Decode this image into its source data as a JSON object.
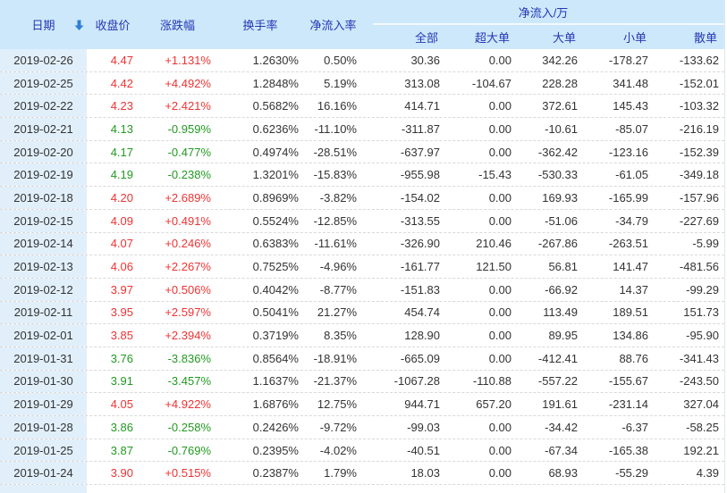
{
  "colors": {
    "up": "#ee3333",
    "down": "#229922",
    "header_bg": "#cde8fa",
    "header_text": "#2537b5",
    "date_cell_bg": "#e1effa",
    "text": "#333333",
    "sort_arrow": "#2e7fd6"
  },
  "table": {
    "columns": {
      "date": "日期",
      "close": "收盘价",
      "change": "涨跌幅",
      "turnover": "换手率",
      "inflow_rate": "净流入率",
      "group": "净流入/万",
      "group_cols": [
        "全部",
        "超大单",
        "大单",
        "小单",
        "散单"
      ]
    },
    "sort_icon": "down-arrow-icon",
    "rows": [
      {
        "date": "2019-02-26",
        "close": "4.47",
        "change": "+1.131%",
        "turnover": "1.2630%",
        "inflow_rate": "0.50%",
        "total": "30.36",
        "super_large": "0.00",
        "large": "342.26",
        "small": "-178.27",
        "retail": "-133.62"
      },
      {
        "date": "2019-02-25",
        "close": "4.42",
        "change": "+4.492%",
        "turnover": "1.2848%",
        "inflow_rate": "5.19%",
        "total": "313.08",
        "super_large": "-104.67",
        "large": "228.28",
        "small": "341.48",
        "retail": "-152.01"
      },
      {
        "date": "2019-02-22",
        "close": "4.23",
        "change": "+2.421%",
        "turnover": "0.5682%",
        "inflow_rate": "16.16%",
        "total": "414.71",
        "super_large": "0.00",
        "large": "372.61",
        "small": "145.43",
        "retail": "-103.32"
      },
      {
        "date": "2019-02-21",
        "close": "4.13",
        "change": "-0.959%",
        "turnover": "0.6236%",
        "inflow_rate": "-11.10%",
        "total": "-311.87",
        "super_large": "0.00",
        "large": "-10.61",
        "small": "-85.07",
        "retail": "-216.19"
      },
      {
        "date": "2019-02-20",
        "close": "4.17",
        "change": "-0.477%",
        "turnover": "0.4974%",
        "inflow_rate": "-28.51%",
        "total": "-637.97",
        "super_large": "0.00",
        "large": "-362.42",
        "small": "-123.16",
        "retail": "-152.39"
      },
      {
        "date": "2019-02-19",
        "close": "4.19",
        "change": "-0.238%",
        "turnover": "1.3201%",
        "inflow_rate": "-15.83%",
        "total": "-955.98",
        "super_large": "-15.43",
        "large": "-530.33",
        "small": "-61.05",
        "retail": "-349.18"
      },
      {
        "date": "2019-02-18",
        "close": "4.20",
        "change": "+2.689%",
        "turnover": "0.8969%",
        "inflow_rate": "-3.82%",
        "total": "-154.02",
        "super_large": "0.00",
        "large": "169.93",
        "small": "-165.99",
        "retail": "-157.96"
      },
      {
        "date": "2019-02-15",
        "close": "4.09",
        "change": "+0.491%",
        "turnover": "0.5524%",
        "inflow_rate": "-12.85%",
        "total": "-313.55",
        "super_large": "0.00",
        "large": "-51.06",
        "small": "-34.79",
        "retail": "-227.69"
      },
      {
        "date": "2019-02-14",
        "close": "4.07",
        "change": "+0.246%",
        "turnover": "0.6383%",
        "inflow_rate": "-11.61%",
        "total": "-326.90",
        "super_large": "210.46",
        "large": "-267.86",
        "small": "-263.51",
        "retail": "-5.99"
      },
      {
        "date": "2019-02-13",
        "close": "4.06",
        "change": "+2.267%",
        "turnover": "0.7525%",
        "inflow_rate": "-4.96%",
        "total": "-161.77",
        "super_large": "121.50",
        "large": "56.81",
        "small": "141.47",
        "retail": "-481.56"
      },
      {
        "date": "2019-02-12",
        "close": "3.97",
        "change": "+0.506%",
        "turnover": "0.4042%",
        "inflow_rate": "-8.77%",
        "total": "-151.83",
        "super_large": "0.00",
        "large": "-66.92",
        "small": "14.37",
        "retail": "-99.29"
      },
      {
        "date": "2019-02-11",
        "close": "3.95",
        "change": "+2.597%",
        "turnover": "0.5041%",
        "inflow_rate": "21.27%",
        "total": "454.74",
        "super_large": "0.00",
        "large": "113.49",
        "small": "189.51",
        "retail": "151.73"
      },
      {
        "date": "2019-02-01",
        "close": "3.85",
        "change": "+2.394%",
        "turnover": "0.3719%",
        "inflow_rate": "8.35%",
        "total": "128.90",
        "super_large": "0.00",
        "large": "89.95",
        "small": "134.86",
        "retail": "-95.90"
      },
      {
        "date": "2019-01-31",
        "close": "3.76",
        "change": "-3.836%",
        "turnover": "0.8564%",
        "inflow_rate": "-18.91%",
        "total": "-665.09",
        "super_large": "0.00",
        "large": "-412.41",
        "small": "88.76",
        "retail": "-341.43"
      },
      {
        "date": "2019-01-30",
        "close": "3.91",
        "change": "-3.457%",
        "turnover": "1.1637%",
        "inflow_rate": "-21.37%",
        "total": "-1067.28",
        "super_large": "-110.88",
        "large": "-557.22",
        "small": "-155.67",
        "retail": "-243.50"
      },
      {
        "date": "2019-01-29",
        "close": "4.05",
        "change": "+4.922%",
        "turnover": "1.6876%",
        "inflow_rate": "12.75%",
        "total": "944.71",
        "super_large": "657.20",
        "large": "191.61",
        "small": "-231.14",
        "retail": "327.04"
      },
      {
        "date": "2019-01-28",
        "close": "3.86",
        "change": "-0.258%",
        "turnover": "0.2426%",
        "inflow_rate": "-9.72%",
        "total": "-99.03",
        "super_large": "0.00",
        "large": "-34.42",
        "small": "-6.37",
        "retail": "-58.25"
      },
      {
        "date": "2019-01-25",
        "close": "3.87",
        "change": "-0.769%",
        "turnover": "0.2395%",
        "inflow_rate": "-4.02%",
        "total": "-40.51",
        "super_large": "0.00",
        "large": "-67.34",
        "small": "-165.38",
        "retail": "192.21"
      },
      {
        "date": "2019-01-24",
        "close": "3.90",
        "change": "+0.515%",
        "turnover": "0.2387%",
        "inflow_rate": "1.79%",
        "total": "18.03",
        "super_large": "0.00",
        "large": "68.93",
        "small": "-55.29",
        "retail": "4.39"
      }
    ]
  }
}
